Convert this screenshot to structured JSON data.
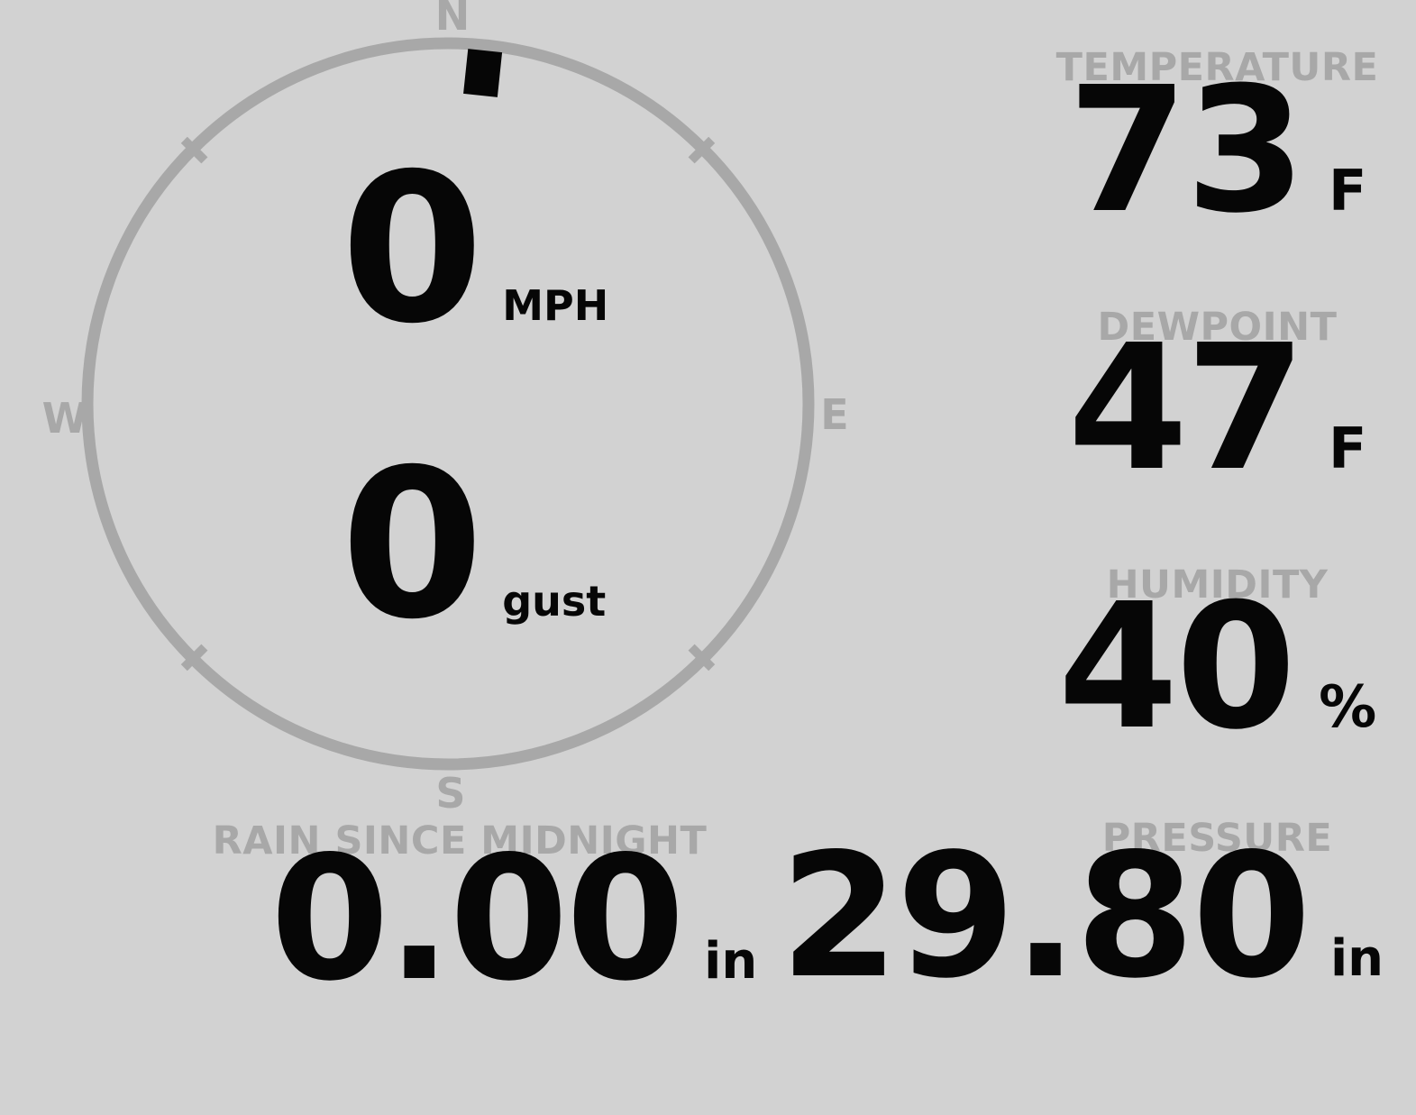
{
  "colors": {
    "background": "#d2d2d2",
    "muted": "#a8a8a8",
    "value": "#060606"
  },
  "compass": {
    "labels": {
      "north": "N",
      "east": "E",
      "south": "S",
      "west": "W"
    },
    "speed": {
      "value": "0",
      "unit": "MPH"
    },
    "gust": {
      "value": "0",
      "unit": "gust"
    },
    "direction_deg": 6
  },
  "metrics": {
    "temperature": {
      "label": "TEMPERATURE",
      "value": "73",
      "unit": "F"
    },
    "dewpoint": {
      "label": "DEWPOINT",
      "value": "47",
      "unit": "F"
    },
    "humidity": {
      "label": "HUMIDITY",
      "value": "40",
      "unit": "%"
    },
    "rain": {
      "label": "RAIN SINCE MIDNIGHT",
      "value": "0.00",
      "unit": "in"
    },
    "pressure": {
      "label": "PRESSURE",
      "value": "29.80",
      "unit": "in"
    }
  }
}
